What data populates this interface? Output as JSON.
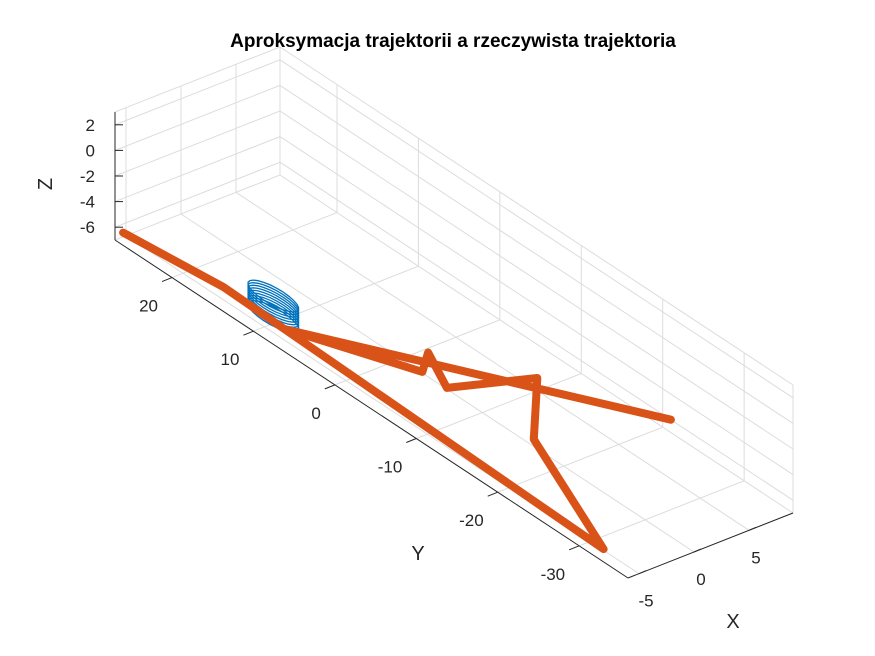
{
  "chart_data": {
    "type": "line",
    "projection": "3d",
    "title": "Aproksymacja trajektorii a rzeczywista trajektoria",
    "xlabel": "X",
    "ylabel": "Y",
    "zlabel": "Z",
    "xlim": [
      -6,
      9
    ],
    "ylim": [
      -36,
      27
    ],
    "zlim": [
      -7,
      3
    ],
    "xticks": [
      "-5",
      "0",
      "5"
    ],
    "yticks": [
      "-30",
      "-20",
      "-10",
      "0",
      "10",
      "20"
    ],
    "zticks": [
      "-6",
      "-4",
      "-2",
      "0",
      "2"
    ],
    "grid": true,
    "series": [
      {
        "kind": "trajectory-polyline",
        "color": "#D95319",
        "points": [
          [
            -6,
            26,
            -6
          ],
          [
            -5,
            15,
            -6
          ],
          [
            -6,
            -33,
            -6
          ],
          [
            -0.5,
            -17,
            -6
          ],
          [
            5,
            -10,
            -6
          ],
          [
            -1,
            -7,
            -6
          ],
          [
            1,
            -2,
            -6
          ],
          [
            -1,
            -4,
            -6
          ],
          [
            -5,
            7,
            -6
          ],
          [
            9,
            -21,
            -6
          ]
        ]
      },
      {
        "kind": "approximation-rings",
        "color": "#0072BD",
        "center": [
          -3.6,
          10.8,
          -5.9
        ],
        "radius": 0.9,
        "z_from": -7,
        "z_to": -5.4,
        "ring_count": 9
      }
    ]
  }
}
